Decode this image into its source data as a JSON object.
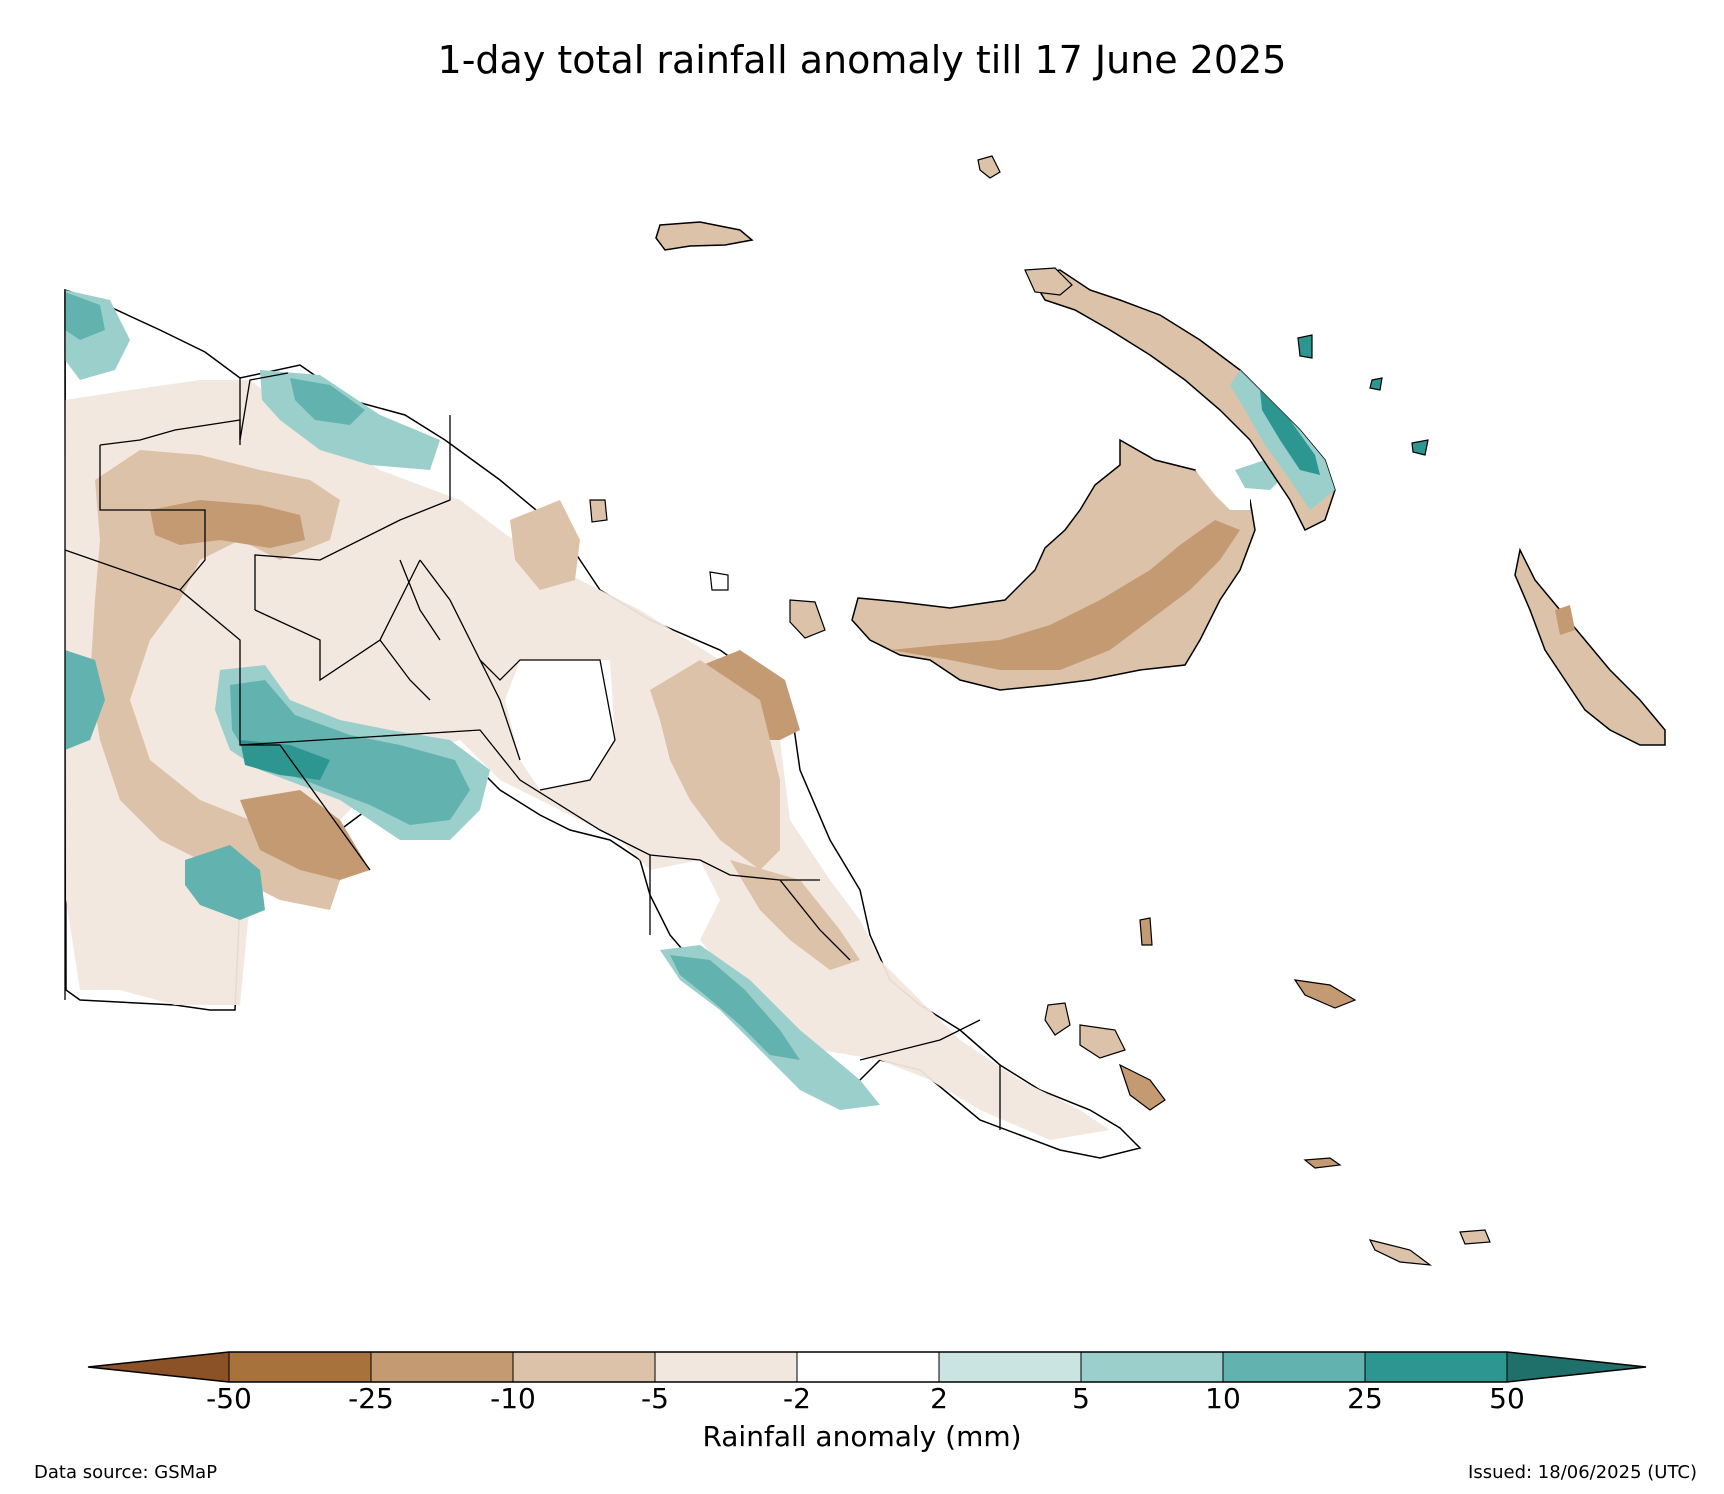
{
  "title": "1-day total rainfall anomaly till 17 June 2025",
  "colorbar": {
    "label": "Rainfall anomaly (mm)",
    "ticks": [
      "-50",
      "-25",
      "-10",
      "-5",
      "-2",
      "2",
      "5",
      "10",
      "25",
      "50"
    ],
    "colors": [
      "#8c5227",
      "#a8723c",
      "#c49a72",
      "#dcc2a8",
      "#f1e7de",
      "#ffffff",
      "#cae4e2",
      "#9acfcc",
      "#62b3b0",
      "#2e9690",
      "#1f6f6b"
    ]
  },
  "footer": {
    "source": "Data source: GSMaP",
    "issued": "Issued: 18/06/2025 (UTC)"
  }
}
